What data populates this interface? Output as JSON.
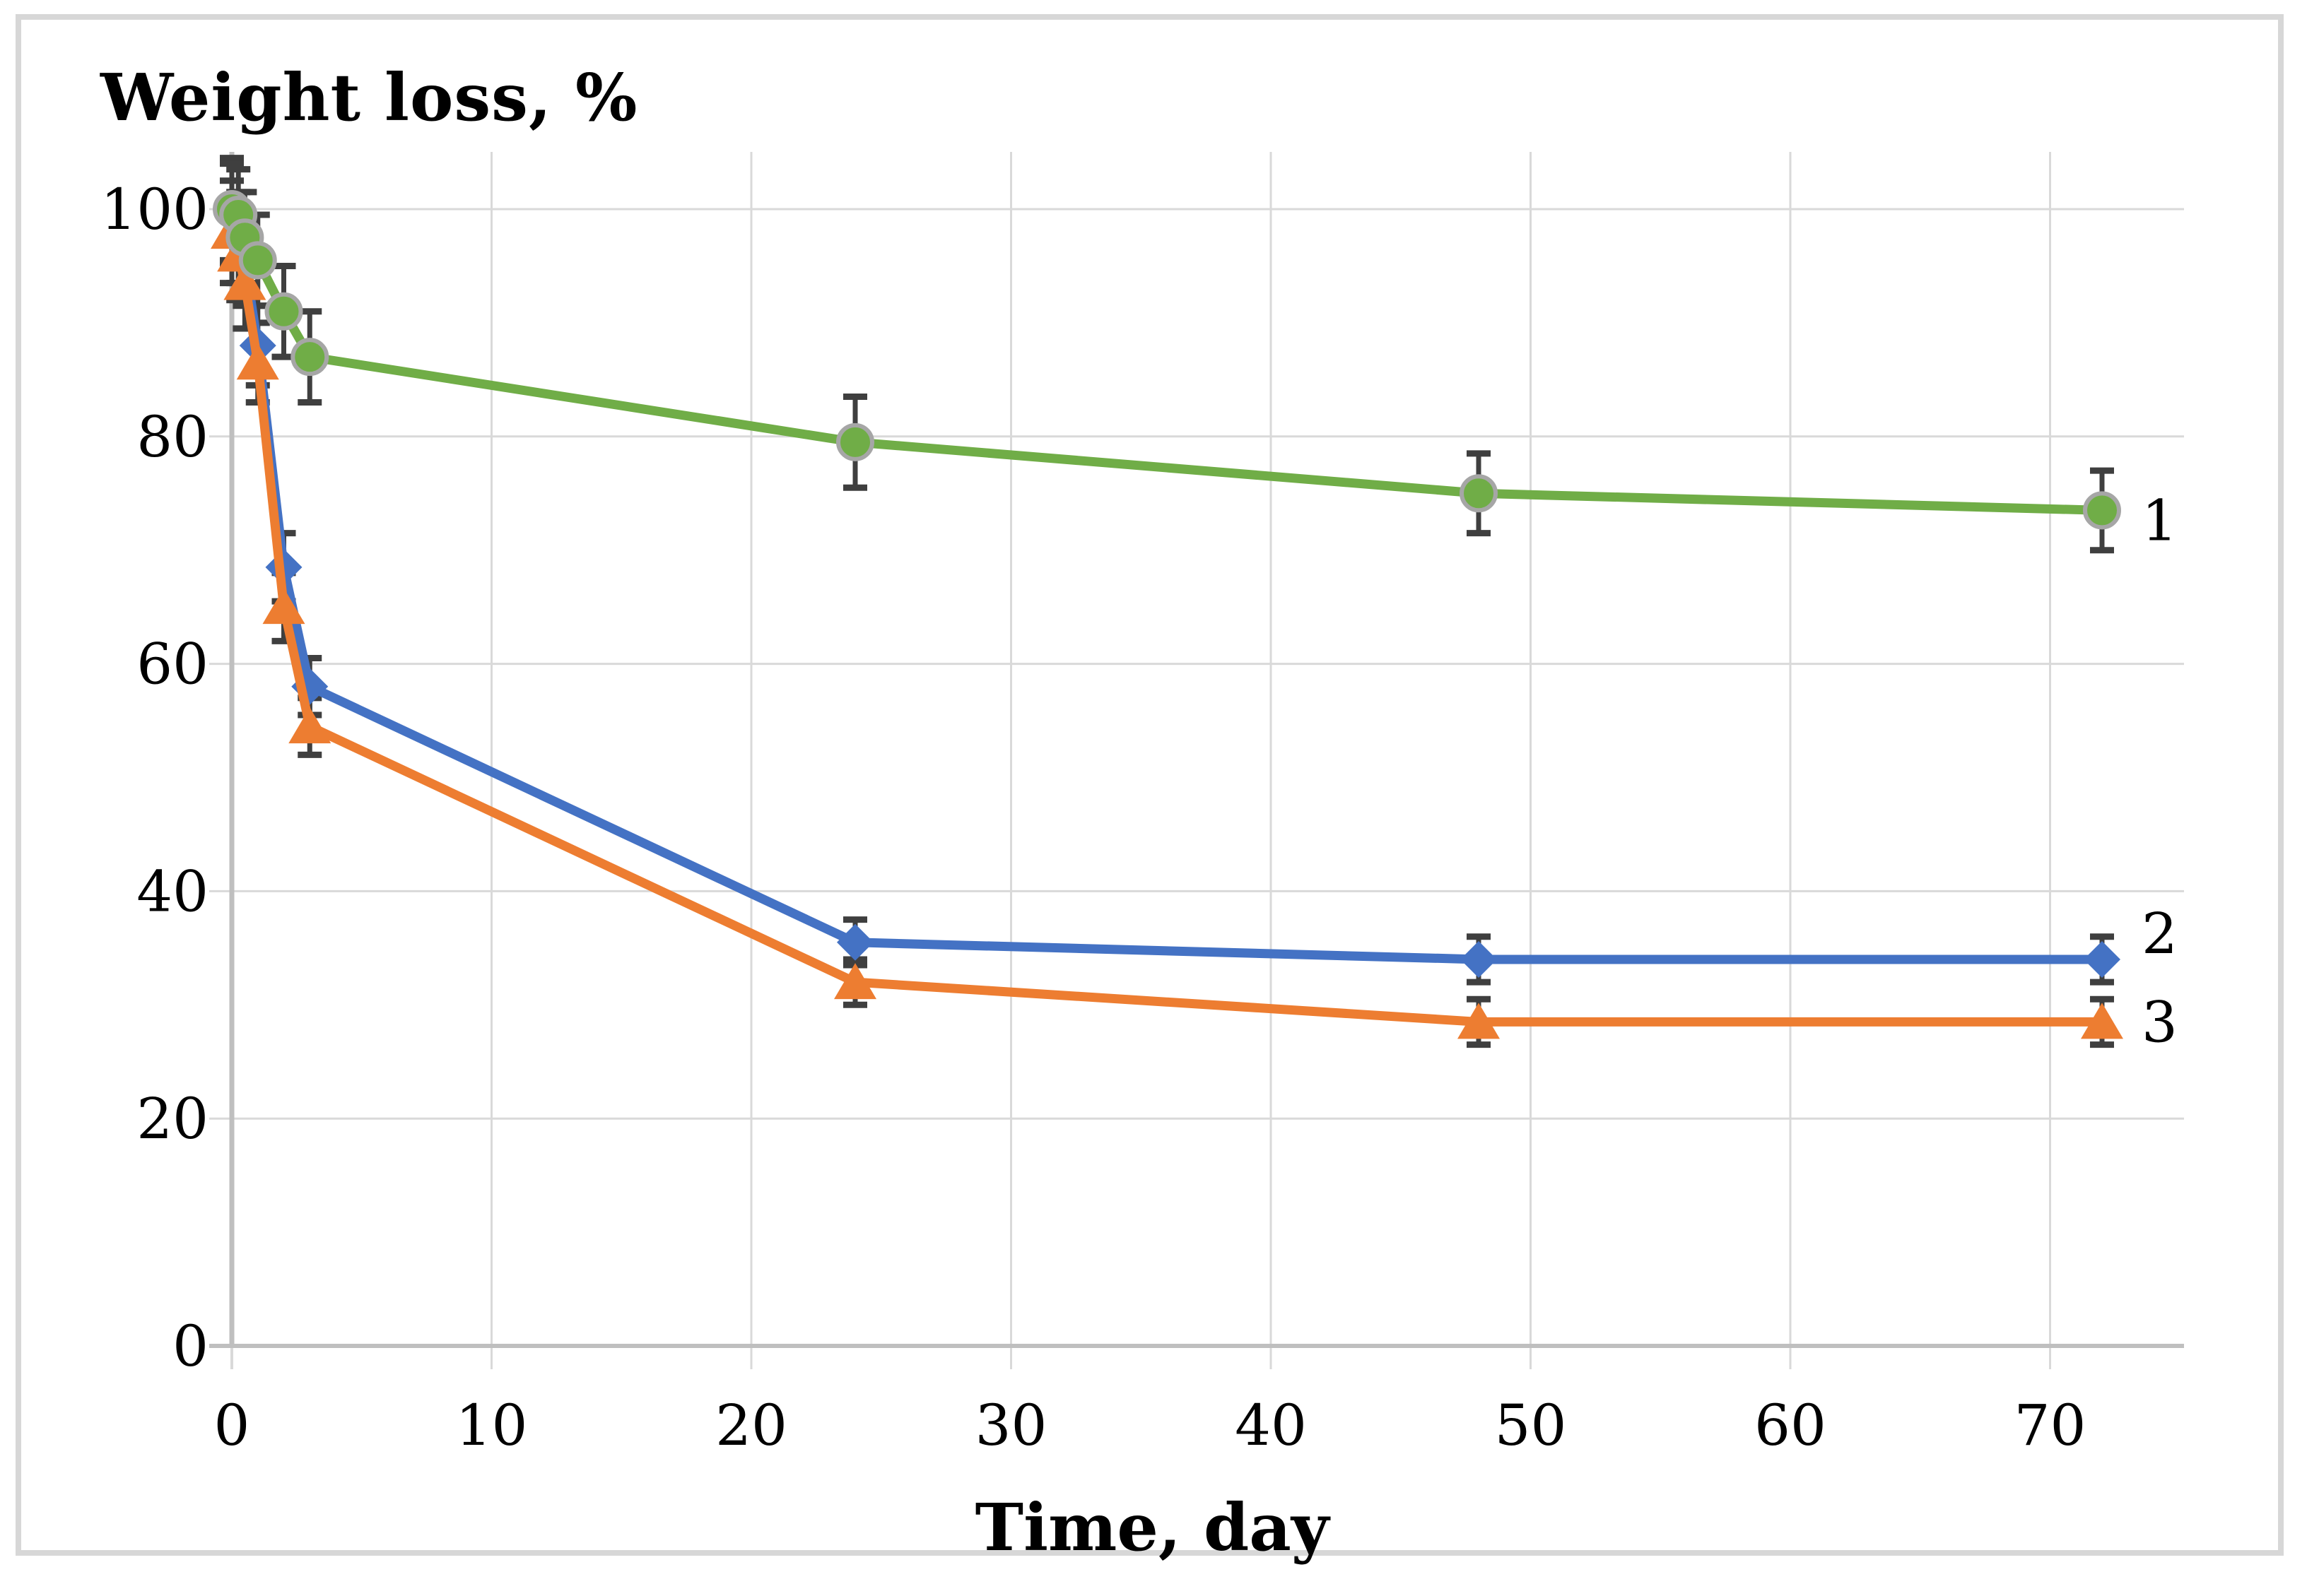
{
  "figure": {
    "background": "#ffffff",
    "frame_color": "#d7d7d7"
  },
  "chart_data": {
    "type": "line",
    "title": "Weight loss, %",
    "ylabel": "Weight loss, %",
    "xlabel": "Time, day",
    "x_unit": "day",
    "y_unit": "%",
    "xlim": [
      0,
      75
    ],
    "ylim": [
      0,
      105
    ],
    "x_ticks": [
      0,
      10,
      20,
      30,
      40,
      50,
      60,
      70
    ],
    "y_ticks": [
      0,
      20,
      40,
      60,
      80,
      100
    ],
    "grid": true,
    "legend_position": "line-end-labels",
    "x": [
      0,
      0.25,
      0.5,
      1,
      2,
      3,
      24,
      48,
      72
    ],
    "series": [
      {
        "name": "1",
        "marker": "circle",
        "color": "#70ad47",
        "marker_outline": "#a6a6a6",
        "values": [
          100,
          99.5,
          97.5,
          95.5,
          91,
          87,
          79.5,
          75,
          73.5
        ],
        "errors": [
          4.5,
          4,
          4,
          4,
          4,
          4,
          4,
          3.5,
          3.5
        ]
      },
      {
        "name": "2",
        "marker": "diamond",
        "color": "#4472c4",
        "values": [
          99.5,
          97.5,
          95.5,
          88,
          68.5,
          58,
          35.5,
          34,
          34
        ],
        "errors": [
          4.5,
          4,
          4,
          3.5,
          3,
          2.5,
          2,
          2,
          2
        ]
      },
      {
        "name": "3",
        "marker": "triangle",
        "color": "#ed7d31",
        "values": [
          98,
          96,
          93.5,
          86.5,
          65,
          54.5,
          32,
          28.5,
          28.5
        ],
        "errors": [
          4.5,
          4,
          4,
          3.5,
          3,
          2.5,
          2,
          2,
          2
        ]
      }
    ],
    "error_bar_color": "#3f3f3f",
    "gridline_color": "#d9d9d9",
    "axis_color": "#bfbfbf",
    "text_color": "#000000"
  }
}
